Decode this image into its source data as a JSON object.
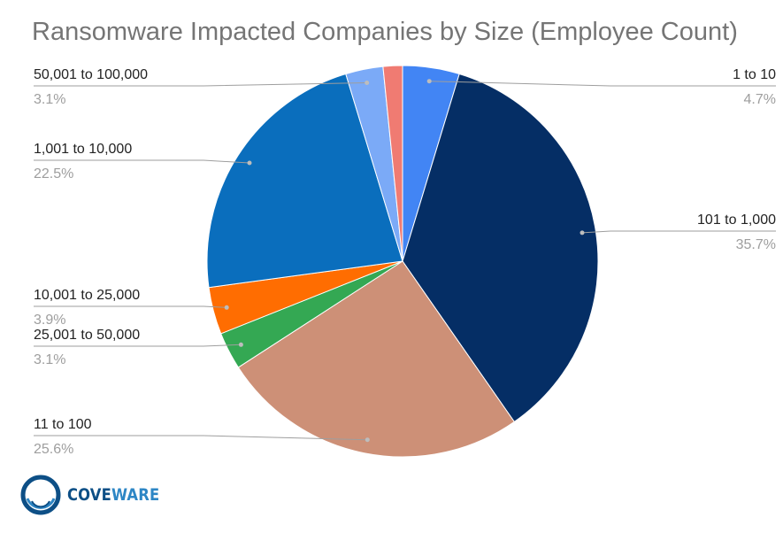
{
  "chart_data": {
    "type": "pie",
    "title": "Ransomware Impacted Companies by Size (Employee Count)",
    "start_angle_deg": 0,
    "direction": "clockwise",
    "slices": [
      {
        "label": "1 to 10",
        "value": 4.7,
        "display": "4.7%",
        "color": "#4285f4",
        "label_side": "right"
      },
      {
        "label": "101 to 1,000",
        "value": 35.7,
        "display": "35.7%",
        "color": "#052e65",
        "label_side": "right"
      },
      {
        "label": "11 to 100",
        "value": 25.6,
        "display": "25.6%",
        "color": "#cd9077",
        "label_side": "left"
      },
      {
        "label": "25,001 to 50,000",
        "value": 3.1,
        "display": "3.1%",
        "color": "#34a853",
        "label_side": "left"
      },
      {
        "label": "10,001 to 25,000",
        "value": 3.9,
        "display": "3.9%",
        "color": "#ff6d01",
        "label_side": "left"
      },
      {
        "label": "1,001 to 10,000",
        "value": 22.5,
        "display": "22.5%",
        "color": "#0a6ebd",
        "label_side": "left"
      },
      {
        "label": "50,001 to 100,000",
        "value": 3.1,
        "display": "3.1%",
        "color": "#7baaf7",
        "label_side": "left"
      },
      {
        "label": "",
        "value": 1.6,
        "display": "",
        "color": "#f07b72",
        "label_side": "none"
      }
    ]
  },
  "logo": {
    "brand_part1": "COVE",
    "brand_part2": "WARE",
    "ring_color": "#0d4f86",
    "ring_inner_color": "#2d86c5"
  }
}
